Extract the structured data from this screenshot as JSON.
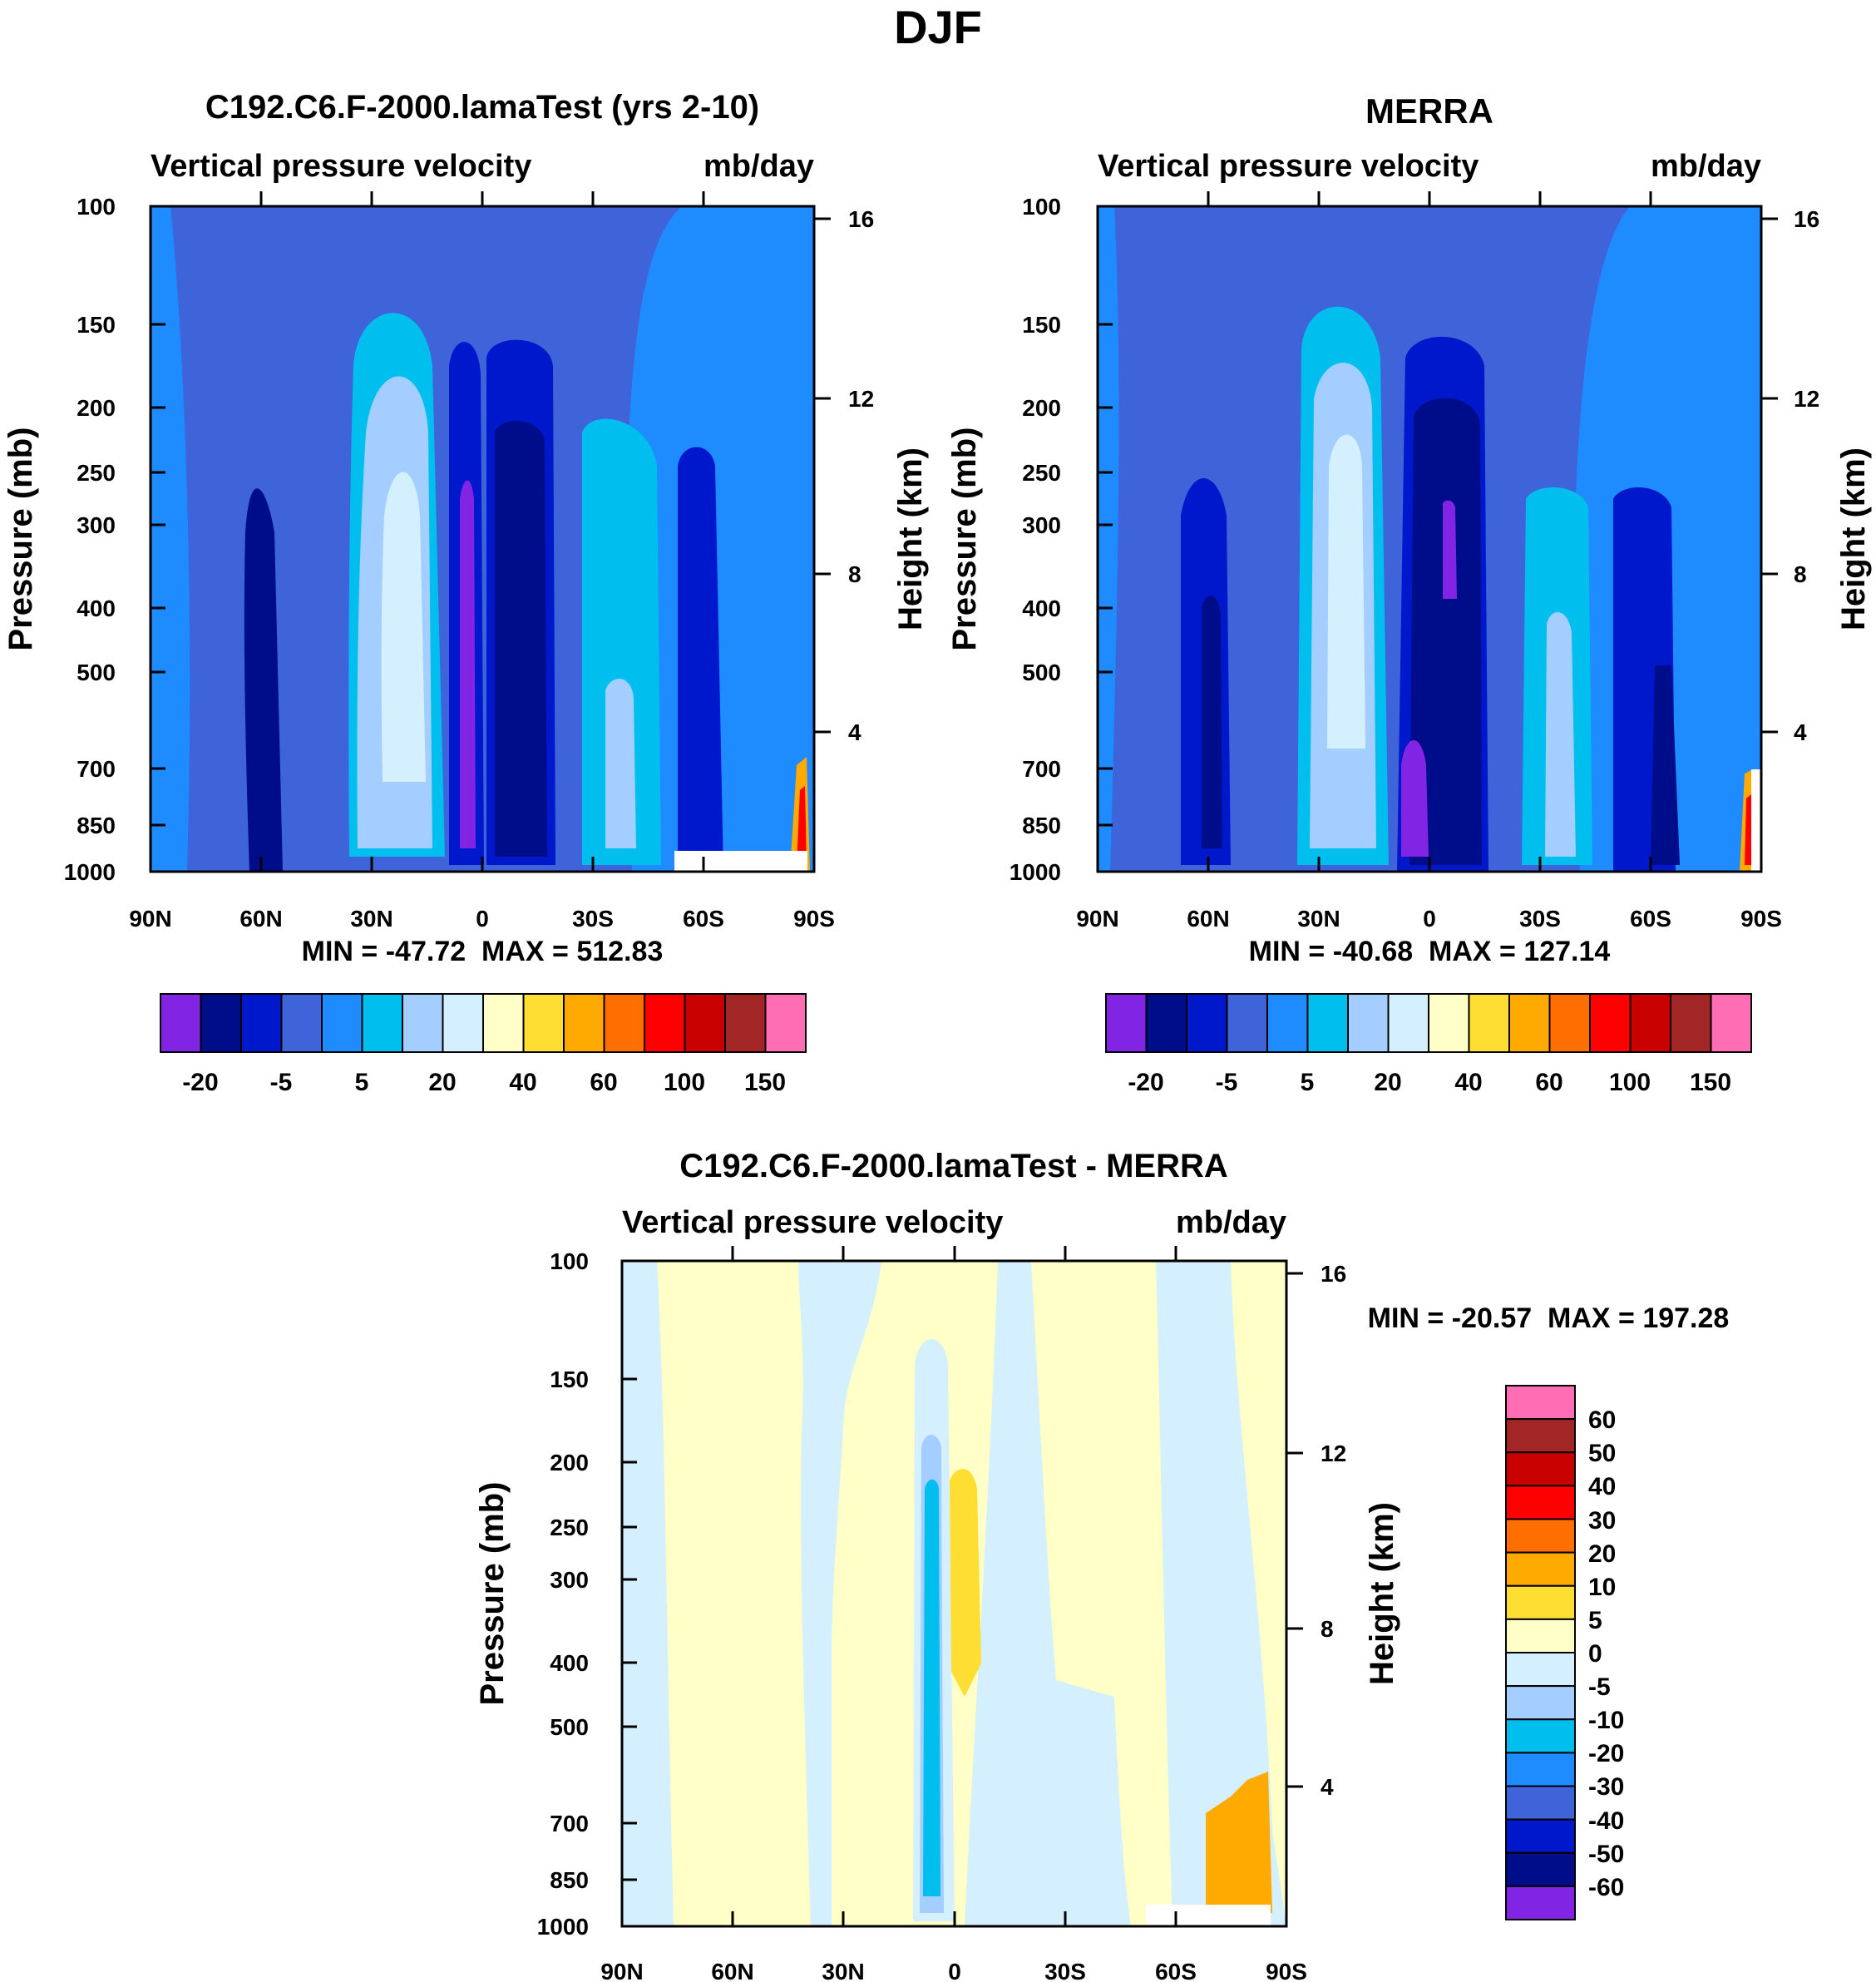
{
  "figure_title": "DJF",
  "chart_data": [
    {
      "type": "heatmap",
      "title": "C192.C6.F-2000.lamaTest (yrs 2-10)",
      "left_subtitle": "Vertical pressure velocity",
      "right_subtitle": "mb/day",
      "ylabel": "Pressure (mb)",
      "y2label": "Height (km)",
      "x_ticks": [
        "90N",
        "60N",
        "30N",
        "0",
        "30S",
        "60S",
        "90S"
      ],
      "y_ticks": [
        "100",
        "150",
        "200",
        "250",
        "300",
        "400",
        "500",
        "700",
        "850",
        "1000"
      ],
      "y2_ticks": [
        "16",
        "12",
        "8",
        "4"
      ],
      "ylim": [
        1000,
        100
      ],
      "stats": "MIN = -47.72  MAX = 512.83",
      "colorbar_labels": [
        "-20",
        "-5",
        "5",
        "20",
        "40",
        "60",
        "100",
        "150"
      ]
    },
    {
      "type": "heatmap",
      "title": "MERRA",
      "left_subtitle": "Vertical pressure velocity",
      "right_subtitle": "mb/day",
      "ylabel": "Pressure (mb)",
      "y2label": "Height (km)",
      "x_ticks": [
        "90N",
        "60N",
        "30N",
        "0",
        "30S",
        "60S",
        "90S"
      ],
      "y_ticks": [
        "100",
        "150",
        "200",
        "250",
        "300",
        "400",
        "500",
        "700",
        "850",
        "1000"
      ],
      "y2_ticks": [
        "16",
        "12",
        "8",
        "4"
      ],
      "ylim": [
        1000,
        100
      ],
      "stats": "MIN = -40.68  MAX = 127.14",
      "colorbar_labels": [
        "-20",
        "-5",
        "5",
        "20",
        "40",
        "60",
        "100",
        "150"
      ]
    },
    {
      "type": "heatmap",
      "title": "C192.C6.F-2000.lamaTest - MERRA",
      "left_subtitle": "Vertical pressure velocity",
      "right_subtitle": "mb/day",
      "ylabel": "Pressure (mb)",
      "y2label": "Height (km)",
      "x_ticks": [
        "90N",
        "60N",
        "30N",
        "0",
        "30S",
        "60S",
        "90S"
      ],
      "y_ticks": [
        "100",
        "150",
        "200",
        "250",
        "300",
        "400",
        "500",
        "700",
        "850",
        "1000"
      ],
      "y2_ticks": [
        "16",
        "12",
        "8",
        "4"
      ],
      "ylim": [
        1000,
        100
      ],
      "stats": "MIN = -20.57  MAX = 197.28",
      "colorbar_labels": [
        "60",
        "50",
        "40",
        "30",
        "20",
        "10",
        "5",
        "0",
        "-5",
        "-10",
        "-20",
        "-30",
        "-40",
        "-50",
        "-60"
      ]
    }
  ],
  "colors": {
    "abs_scale": [
      "#8224e3",
      "#000d8a",
      "#0018cc",
      "#3f63d9",
      "#1e8cff",
      "#00bfef",
      "#a3ceff",
      "#d4f0ff",
      "#ffffc8",
      "#ffde33",
      "#ffaa00",
      "#ff6e00",
      "#ff0000",
      "#c90000",
      "#a22626",
      "#ff6eb4"
    ],
    "diff_scale": [
      "#ff6eb4",
      "#a22626",
      "#c90000",
      "#ff0000",
      "#ff6e00",
      "#ffaa00",
      "#ffde33",
      "#ffffc8",
      "#d4f0ff",
      "#a3ceff",
      "#00bfef",
      "#1e8cff",
      "#3f63d9",
      "#0018cc",
      "#000d8a",
      "#8224e3"
    ]
  }
}
